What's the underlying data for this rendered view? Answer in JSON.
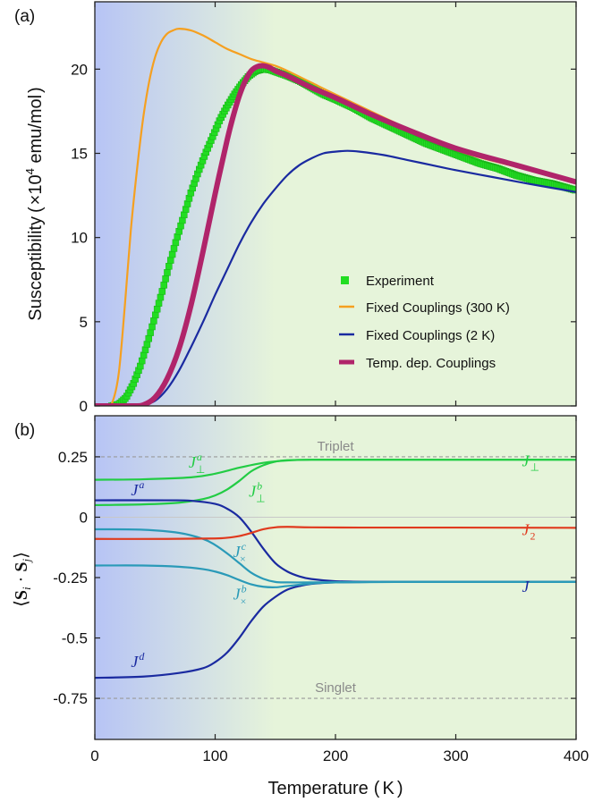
{
  "chart_data": [
    {
      "panel": "(a)",
      "type": "line",
      "xlabel": "",
      "ylabel": {
        "main": "Susceptibility",
        "open": "(",
        "prefix": "×10",
        "exp": "4",
        "unit": " emu/mol",
        "close": ")"
      },
      "xlim": [
        0,
        400
      ],
      "ylim": [
        0,
        24
      ],
      "xticks": [
        0,
        100,
        200,
        300,
        400
      ],
      "yticks": [
        0,
        5,
        10,
        15,
        20
      ],
      "grid": false,
      "legend_position": "lower-right",
      "series": [
        {
          "name": "Experiment",
          "style": "markers",
          "color": "#22dd22",
          "x": [
            14,
            20,
            26,
            32,
            38,
            44,
            50,
            56,
            62,
            68,
            74,
            80,
            86,
            92,
            98,
            104,
            110,
            116,
            122,
            128,
            134,
            140,
            146,
            152,
            160,
            170,
            180,
            190,
            200,
            215,
            230,
            245,
            260,
            275,
            290,
            305,
            320,
            335,
            350,
            365,
            380,
            395,
            400
          ],
          "y": [
            0.0,
            0.1,
            0.5,
            1.3,
            2.4,
            3.8,
            5.3,
            6.8,
            8.4,
            9.9,
            11.3,
            12.7,
            13.9,
            15.0,
            16.0,
            17.0,
            17.8,
            18.5,
            19.1,
            19.6,
            19.9,
            20.0,
            19.95,
            19.8,
            19.6,
            19.3,
            18.9,
            18.5,
            18.2,
            17.7,
            17.1,
            16.6,
            16.1,
            15.6,
            15.2,
            14.8,
            14.4,
            14.1,
            13.7,
            13.4,
            13.2,
            12.9,
            12.8
          ]
        },
        {
          "name": "Fixed Couplings (300 K)",
          "style": "line",
          "color": "#f5a020",
          "x": [
            0,
            10,
            15,
            20,
            25,
            30,
            35,
            40,
            45,
            50,
            55,
            60,
            65,
            70,
            80,
            90,
            100,
            110,
            120,
            130,
            140,
            150,
            160,
            180,
            200,
            250,
            300,
            350,
            400
          ],
          "y": [
            0,
            0,
            0.3,
            2.0,
            6.0,
            10.5,
            14.0,
            17.0,
            19.2,
            20.7,
            21.6,
            22.1,
            22.3,
            22.4,
            22.3,
            22.0,
            21.6,
            21.2,
            20.9,
            20.6,
            20.4,
            20.2,
            19.9,
            19.2,
            18.5,
            16.8,
            15.2,
            14.2,
            13.3
          ]
        },
        {
          "name": "Fixed Couplings (2 K)",
          "style": "line",
          "color": "#1a2aa0",
          "x": [
            0,
            20,
            30,
            40,
            50,
            60,
            70,
            80,
            90,
            100,
            110,
            120,
            130,
            140,
            150,
            160,
            170,
            180,
            190,
            200,
            210,
            220,
            240,
            260,
            280,
            300,
            330,
            360,
            400
          ],
          "y": [
            0,
            0,
            0,
            0.05,
            0.3,
            1.0,
            2.1,
            3.5,
            5.0,
            6.6,
            8.1,
            9.6,
            10.9,
            12.0,
            12.9,
            13.7,
            14.3,
            14.7,
            15.0,
            15.1,
            15.15,
            15.1,
            14.9,
            14.6,
            14.3,
            14.0,
            13.6,
            13.2,
            12.7
          ]
        },
        {
          "name": "Temp. dep. Couplings",
          "style": "thick-line",
          "color": "#b0246a",
          "x": [
            0,
            30,
            40,
            50,
            60,
            70,
            80,
            90,
            100,
            110,
            115,
            120,
            125,
            130,
            135,
            140,
            145,
            150,
            160,
            180,
            200,
            230,
            260,
            300,
            350,
            400
          ],
          "y": [
            0,
            0,
            0.05,
            0.5,
            1.6,
            3.4,
            6.0,
            9.2,
            12.6,
            15.8,
            17.2,
            18.4,
            19.3,
            19.9,
            20.15,
            20.2,
            20.1,
            19.9,
            19.6,
            18.9,
            18.3,
            17.3,
            16.4,
            15.3,
            14.3,
            13.3
          ]
        }
      ]
    },
    {
      "panel": "(b)",
      "type": "line",
      "xlabel": {
        "main": "Temperature",
        "open": "(",
        "unit": "K",
        "close": ")"
      },
      "ylabel": {
        "open": "⟨",
        "s1": "S",
        "i": "i",
        "dot": " · ",
        "s2": "S",
        "j": "j",
        "close": "⟩"
      },
      "xlim": [
        0,
        400
      ],
      "ylim": [
        -0.92,
        0.42
      ],
      "xticks": [
        0,
        100,
        200,
        300,
        400
      ],
      "yticks": [
        0.25,
        0,
        -0.25,
        -0.5,
        -0.75
      ],
      "ytick_labels": [
        "0.25",
        "0",
        "-0.25",
        "-0.5",
        "-0.75"
      ],
      "grid": false,
      "reference_lines": [
        {
          "label": "Triplet",
          "y": 0.25
        },
        {
          "label": "Singlet",
          "y": -0.75
        }
      ],
      "series": [
        {
          "name": "J_perp_a",
          "color": "#22cc44",
          "x": [
            0,
            40,
            80,
            100,
            120,
            140,
            160,
            180,
            220,
            300,
            400
          ],
          "y": [
            0.155,
            0.157,
            0.165,
            0.18,
            0.205,
            0.225,
            0.235,
            0.238,
            0.238,
            0.238,
            0.238
          ]
        },
        {
          "name": "J_perp_b",
          "color": "#22cc44",
          "x": [
            0,
            40,
            70,
            90,
            100,
            110,
            120,
            130,
            140,
            150,
            160,
            180,
            220,
            400
          ],
          "y": [
            0.05,
            0.053,
            0.06,
            0.075,
            0.09,
            0.115,
            0.15,
            0.19,
            0.215,
            0.23,
            0.236,
            0.238,
            0.238,
            0.238
          ]
        },
        {
          "name": "J_a",
          "color": "#1a2aa0",
          "x": [
            0,
            60,
            80,
            100,
            110,
            120,
            130,
            140,
            150,
            160,
            170,
            180,
            200,
            230,
            260,
            400
          ],
          "y": [
            0.07,
            0.07,
            0.068,
            0.055,
            0.035,
            0.0,
            -0.06,
            -0.13,
            -0.19,
            -0.225,
            -0.245,
            -0.256,
            -0.265,
            -0.268,
            -0.268,
            -0.268
          ]
        },
        {
          "name": "J_d",
          "color": "#1a2aa0",
          "x": [
            0,
            40,
            70,
            90,
            100,
            110,
            120,
            130,
            140,
            150,
            160,
            170,
            180,
            200,
            230,
            260,
            400
          ],
          "y": [
            -0.665,
            -0.66,
            -0.645,
            -0.625,
            -0.6,
            -0.56,
            -0.5,
            -0.43,
            -0.37,
            -0.33,
            -0.3,
            -0.285,
            -0.276,
            -0.27,
            -0.268,
            -0.268,
            -0.268
          ]
        },
        {
          "name": "J_x_c",
          "color": "#2a9ab8",
          "x": [
            0,
            40,
            70,
            90,
            100,
            110,
            120,
            130,
            140,
            150,
            160,
            180,
            200,
            250,
            400
          ],
          "y": [
            -0.05,
            -0.052,
            -0.065,
            -0.09,
            -0.115,
            -0.15,
            -0.19,
            -0.23,
            -0.255,
            -0.268,
            -0.27,
            -0.27,
            -0.269,
            -0.268,
            -0.268
          ]
        },
        {
          "name": "J_x_b",
          "color": "#2a9ab8",
          "x": [
            0,
            40,
            70,
            90,
            100,
            110,
            120,
            130,
            140,
            150,
            160,
            180,
            200,
            250,
            400
          ],
          "y": [
            -0.2,
            -0.2,
            -0.205,
            -0.215,
            -0.225,
            -0.24,
            -0.26,
            -0.278,
            -0.288,
            -0.29,
            -0.285,
            -0.275,
            -0.27,
            -0.268,
            -0.268
          ]
        },
        {
          "name": "J_2",
          "color": "#e03a1e",
          "x": [
            0,
            60,
            100,
            110,
            120,
            130,
            140,
            150,
            160,
            180,
            220,
            300,
            400
          ],
          "y": [
            -0.09,
            -0.09,
            -0.088,
            -0.085,
            -0.078,
            -0.065,
            -0.05,
            -0.042,
            -0.04,
            -0.042,
            -0.043,
            -0.043,
            -0.044
          ]
        }
      ],
      "curve_labels": [
        {
          "series": "J_perp_a",
          "base": "J",
          "sub": "⊥",
          "sup": "a",
          "color": "#22cc44"
        },
        {
          "series": "J_perp_b",
          "base": "J",
          "sub": "⊥",
          "sup": "b",
          "color": "#22cc44"
        },
        {
          "series": "J_a",
          "base": "J",
          "sub": "",
          "sup": "a",
          "color": "#1a2aa0"
        },
        {
          "series": "J_d",
          "base": "J",
          "sub": "",
          "sup": "d",
          "color": "#1a2aa0"
        },
        {
          "series": "J_x_c",
          "base": "J",
          "sub": "×",
          "sup": "c",
          "color": "#2a9ab8"
        },
        {
          "series": "J_x_b",
          "base": "J",
          "sub": "×",
          "sup": "b",
          "color": "#2a9ab8"
        },
        {
          "series": "J_perp_right",
          "base": "J",
          "sub": "⊥",
          "sup": "",
          "color": "#22cc44"
        },
        {
          "series": "J_2",
          "base": "J",
          "sub": "2",
          "sup": "",
          "color": "#e03a1e"
        },
        {
          "series": "J_right",
          "base": "J",
          "sub": "",
          "sup": "",
          "color": "#1a2aa0"
        }
      ]
    }
  ],
  "background": {
    "left_color": "#b7c4f5",
    "right_color": "#e6f4da",
    "blend_end_temperature": 150
  }
}
